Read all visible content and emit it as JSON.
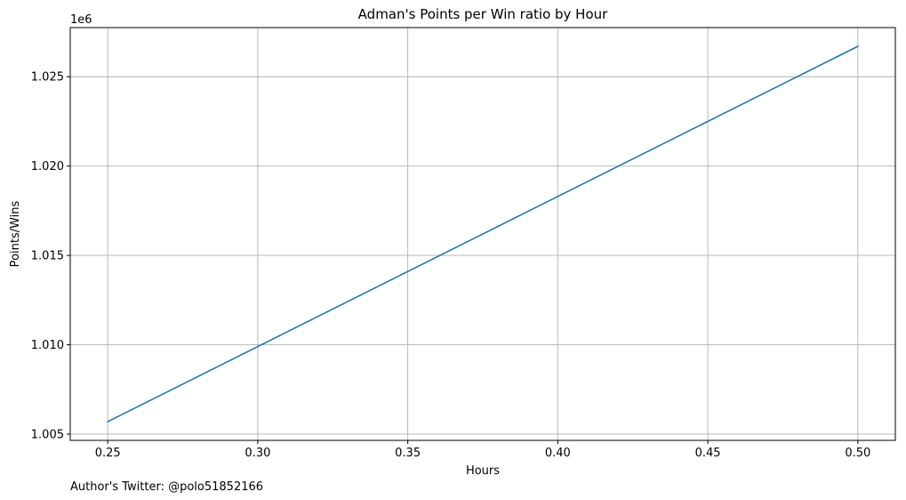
{
  "chart_data": {
    "type": "line",
    "title": "Adman's Points per Win ratio by Hour",
    "xlabel": "Hours",
    "ylabel": "Points/Wins",
    "y_offset_label": "1e6",
    "x": [
      0.25,
      0.5
    ],
    "series": [
      {
        "values": [
          1005700,
          1026700
        ],
        "color": "#1f77b4"
      }
    ],
    "xlim": [
      0.2375,
      0.5125
    ],
    "ylim": [
      1004650,
      1027750
    ],
    "xticks": [
      0.25,
      0.3,
      0.35,
      0.4,
      0.45,
      0.5
    ],
    "xtick_labels": [
      "0.25",
      "0.30",
      "0.35",
      "0.40",
      "0.45",
      "0.50"
    ],
    "yticks": [
      1005000,
      1010000,
      1015000,
      1020000,
      1025000
    ],
    "ytick_labels": [
      "1.005",
      "1.010",
      "1.015",
      "1.020",
      "1.025"
    ],
    "grid": true,
    "footer": "Author's Twitter: @polo51852166"
  }
}
